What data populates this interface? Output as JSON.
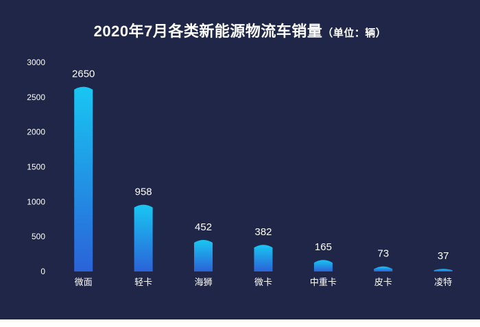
{
  "chart_data": {
    "type": "bar",
    "title": "2020年7月各类新能源物流车销量",
    "unit_note": "（单位：辆）",
    "categories": [
      "微面",
      "轻卡",
      "海狮",
      "微卡",
      "中重卡",
      "皮卡",
      "凌特"
    ],
    "values": [
      2650,
      958,
      452,
      382,
      165,
      73,
      37
    ],
    "ylim": [
      0,
      3000
    ],
    "yticks": [
      0,
      500,
      1000,
      1500,
      2000,
      2500,
      3000
    ],
    "xlabel": "",
    "ylabel": "",
    "grid": false,
    "legend": "none",
    "colors": {
      "background": "#1f2647",
      "bar_top": "#19c6f2",
      "bar_bottom": "#2a63d8",
      "text": "#ffffff"
    }
  }
}
